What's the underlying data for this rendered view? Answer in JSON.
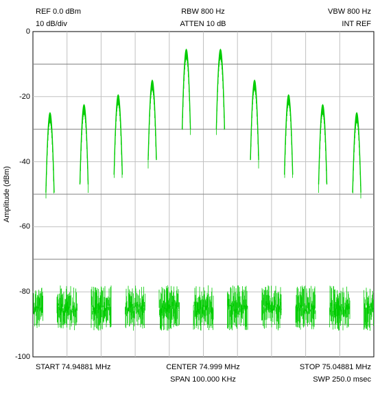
{
  "header": {
    "ref": "REF 0.0 dBm",
    "scale": "10 dB/div",
    "rbw": "RBW 800 Hz",
    "atten": "ATTEN 10 dB",
    "vbw": "VBW 800 Hz",
    "ref_mode": "INT REF"
  },
  "footer": {
    "start": "START 74.94881 MHz",
    "center": "CENTER 74.999 MHz",
    "stop": "STOP 75.04881 MHz",
    "span": "SPAN 100.000 KHz",
    "sweep": "SWP 250.0 msec"
  },
  "chart_data": {
    "type": "line",
    "title": "",
    "xlabel": "",
    "ylabel": "Amplitude (dBm)",
    "ylim": [
      -100,
      0
    ],
    "yticks": [
      0,
      -20,
      -40,
      -60,
      -80,
      -100
    ],
    "xlim_mhz": [
      74.94881,
      75.04881
    ],
    "grid": true,
    "series_color": "#00cc00",
    "noise_floor_dbm": [
      -92,
      -78
    ],
    "peaks": [
      {
        "freq_mhz": 74.95381,
        "amplitude_dbm": -25
      },
      {
        "freq_mhz": 74.96381,
        "amplitude_dbm": -22.5
      },
      {
        "freq_mhz": 74.97381,
        "amplitude_dbm": -19.5
      },
      {
        "freq_mhz": 74.98381,
        "amplitude_dbm": -15
      },
      {
        "freq_mhz": 74.99381,
        "amplitude_dbm": -5.5
      },
      {
        "freq_mhz": 75.00381,
        "amplitude_dbm": -5.5
      },
      {
        "freq_mhz": 75.01381,
        "amplitude_dbm": -15
      },
      {
        "freq_mhz": 75.02381,
        "amplitude_dbm": -19.5
      },
      {
        "freq_mhz": 75.03381,
        "amplitude_dbm": -22.5
      },
      {
        "freq_mhz": 75.04381,
        "amplitude_dbm": -25
      }
    ]
  }
}
